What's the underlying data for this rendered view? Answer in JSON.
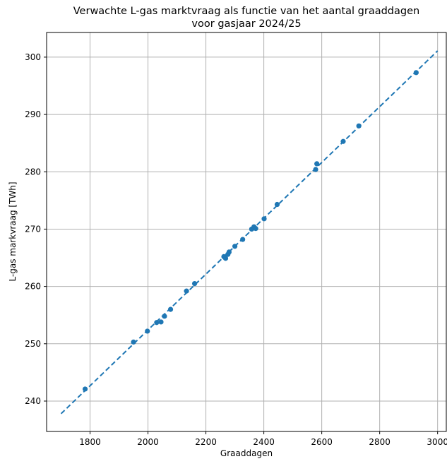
{
  "chart_data": {
    "type": "scatter",
    "title": [
      "Verwachte L-gas marktvraag als functie van het aantal graaddagen",
      "voor gasjaar 2024/25"
    ],
    "xlabel": "Graaddagen",
    "ylabel": "L-gas markvraag [TWh]",
    "xlim": [
      1650,
      3030
    ],
    "ylim": [
      234.7,
      304.3
    ],
    "xticks": [
      1800,
      2000,
      2200,
      2400,
      2600,
      2800,
      3000
    ],
    "yticks": [
      240,
      250,
      260,
      270,
      280,
      290,
      300
    ],
    "grid": true,
    "colors": {
      "points": "#1f77b4",
      "fit_line": "#1f77b4",
      "grid": "#b0b0b0"
    },
    "points": [
      {
        "x": 1783,
        "y": 242.1
      },
      {
        "x": 1950,
        "y": 250.3
      },
      {
        "x": 1998,
        "y": 252.2
      },
      {
        "x": 2030,
        "y": 253.7
      },
      {
        "x": 2045,
        "y": 253.8
      },
      {
        "x": 2057,
        "y": 254.8
      },
      {
        "x": 2078,
        "y": 256.0
      },
      {
        "x": 2133,
        "y": 259.2
      },
      {
        "x": 2161,
        "y": 260.5
      },
      {
        "x": 2262,
        "y": 265.2
      },
      {
        "x": 2268,
        "y": 264.9
      },
      {
        "x": 2276,
        "y": 265.6
      },
      {
        "x": 2280,
        "y": 266.0
      },
      {
        "x": 2300,
        "y": 267.0
      },
      {
        "x": 2327,
        "y": 268.2
      },
      {
        "x": 2358,
        "y": 270.0
      },
      {
        "x": 2366,
        "y": 270.4
      },
      {
        "x": 2372,
        "y": 270.1
      },
      {
        "x": 2401,
        "y": 271.8
      },
      {
        "x": 2446,
        "y": 274.3
      },
      {
        "x": 2579,
        "y": 280.4
      },
      {
        "x": 2583,
        "y": 281.4
      },
      {
        "x": 2674,
        "y": 285.3
      },
      {
        "x": 2728,
        "y": 288.0
      },
      {
        "x": 2926,
        "y": 297.3
      }
    ],
    "fit_line": {
      "style": "dashed",
      "x": [
        1700,
        3000
      ],
      "y": [
        237.8,
        301.1
      ]
    }
  }
}
